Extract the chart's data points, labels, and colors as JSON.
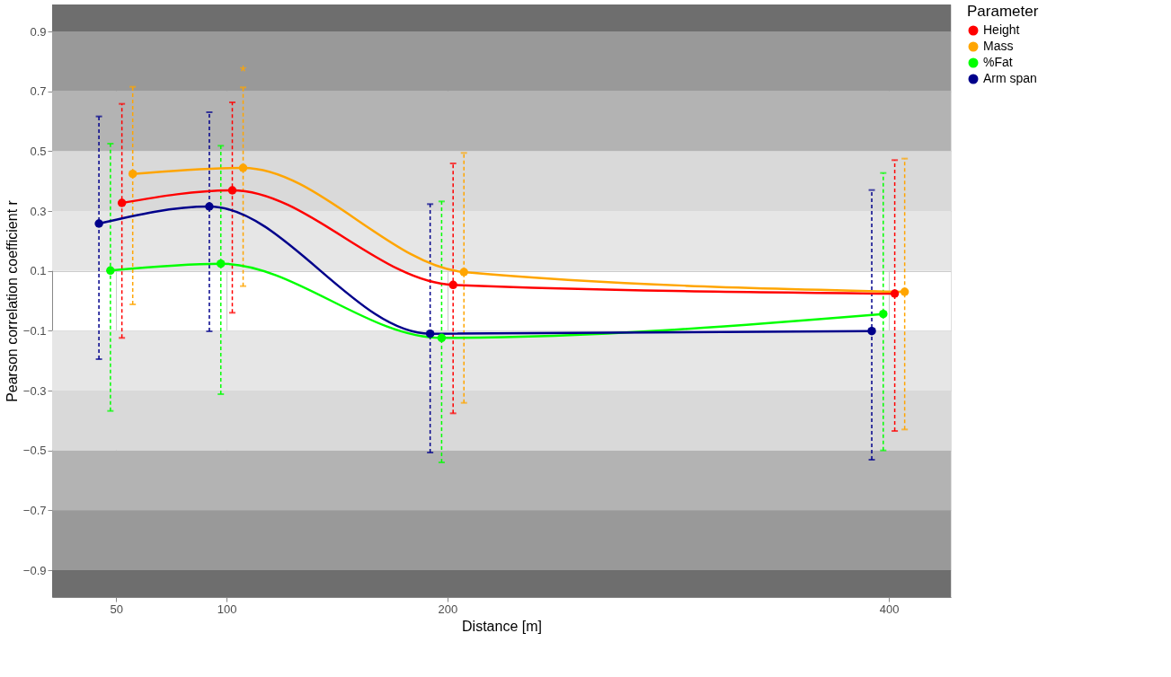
{
  "chart_data": {
    "type": "line",
    "xlabel": "Distance [m]",
    "ylabel": "Pearson correlation coefficient r",
    "legend_title": "Parameter",
    "legend": "right",
    "grid": true,
    "marker": "circle",
    "line_style": "solid",
    "xlim": [
      21,
      428
    ],
    "xticks": [
      50,
      100,
      200,
      400
    ],
    "ylim": [
      -0.99,
      0.99
    ],
    "yticks": [
      -0.9,
      -0.7,
      -0.5,
      -0.3,
      -0.1,
      0.1,
      0.3,
      0.5,
      0.7,
      0.9
    ],
    "series": [
      {
        "name": "Height",
        "color": "#ff0000",
        "x": [
          52.6,
          102.6,
          202.6,
          402.6
        ],
        "values": [
          0.327,
          0.369,
          0.053,
          0.024
        ],
        "errors": [
          [
            -0.124,
            0.658
          ],
          [
            -0.04,
            0.663
          ],
          [
            -0.376,
            0.459
          ],
          [
            -0.435,
            0.47
          ]
        ]
      },
      {
        "name": "Mass",
        "color": "#ffa500",
        "x": [
          57.5,
          107.5,
          207.5,
          407.1
        ],
        "values": [
          0.424,
          0.444,
          0.096,
          0.03
        ],
        "errors": [
          [
            -0.012,
            0.715
          ],
          [
            0.049,
            0.713
          ],
          [
            -0.341,
            0.494
          ],
          [
            -0.43,
            0.475
          ]
        ]
      },
      {
        "name": "%Fat",
        "color": "#00ff00",
        "x": [
          47.4,
          97.4,
          197.4,
          397.4
        ],
        "values": [
          0.101,
          0.124,
          -0.124,
          -0.044
        ],
        "errors": [
          [
            -0.368,
            0.525
          ],
          [
            -0.312,
            0.518
          ],
          [
            -0.54,
            0.332
          ],
          [
            -0.5,
            0.427
          ]
        ]
      },
      {
        "name": "Arm span",
        "color": "#00008b",
        "x": [
          42.2,
          92.2,
          192.2,
          392.2
        ],
        "values": [
          0.258,
          0.315,
          -0.11,
          -0.101
        ],
        "errors": [
          [
            -0.195,
            0.616
          ],
          [
            -0.102,
            0.63
          ],
          [
            -0.507,
            0.323
          ],
          [
            -0.531,
            0.37
          ]
        ]
      }
    ],
    "bands": [
      {
        "axis": "y",
        "from": 0.9,
        "to": 0.99,
        "color": "#6e6e6e"
      },
      {
        "axis": "y",
        "from": 0.7,
        "to": 0.9,
        "color": "#999999"
      },
      {
        "axis": "y",
        "from": 0.5,
        "to": 0.7,
        "color": "#b3b3b3"
      },
      {
        "axis": "y",
        "from": 0.3,
        "to": 0.5,
        "color": "#d9d9d9"
      },
      {
        "axis": "y",
        "from": 0.1,
        "to": 0.3,
        "color": "#e6e6e6"
      },
      {
        "axis": "y",
        "from": -0.3,
        "to": -0.1,
        "color": "#e6e6e6"
      },
      {
        "axis": "y",
        "from": -0.5,
        "to": -0.3,
        "color": "#d9d9d9"
      },
      {
        "axis": "y",
        "from": -0.7,
        "to": -0.5,
        "color": "#b3b3b3"
      },
      {
        "axis": "y",
        "from": -0.9,
        "to": -0.7,
        "color": "#999999"
      },
      {
        "axis": "y",
        "from": -0.99,
        "to": -0.9,
        "color": "#6e6e6e"
      }
    ],
    "annotations": [
      {
        "text": "*",
        "x": 107.5,
        "y": 0.713
      }
    ]
  }
}
